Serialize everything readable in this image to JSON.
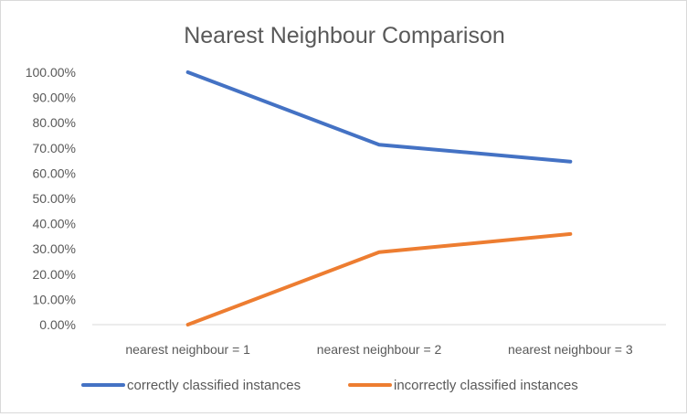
{
  "chart_data": {
    "type": "line",
    "title": "Nearest Neighbour Comparison",
    "xlabel": "",
    "ylabel": "",
    "categories": [
      "nearest neighbour = 1",
      "nearest neighbour = 2",
      "nearest neighbour = 3"
    ],
    "series": [
      {
        "name": "correctly classified instances",
        "color": "#4472C4",
        "values": [
          100.0,
          71.3,
          64.6
        ]
      },
      {
        "name": "incorrectly classified instances",
        "color": "#ED7D31",
        "values": [
          0.0,
          28.7,
          35.9
        ]
      }
    ],
    "ylim": [
      0,
      100
    ],
    "yticks": [
      "0.00%",
      "10.00%",
      "20.00%",
      "30.00%",
      "40.00%",
      "50.00%",
      "60.00%",
      "70.00%",
      "80.00%",
      "90.00%",
      "100.00%"
    ],
    "grid": false,
    "legend_position": "bottom"
  }
}
